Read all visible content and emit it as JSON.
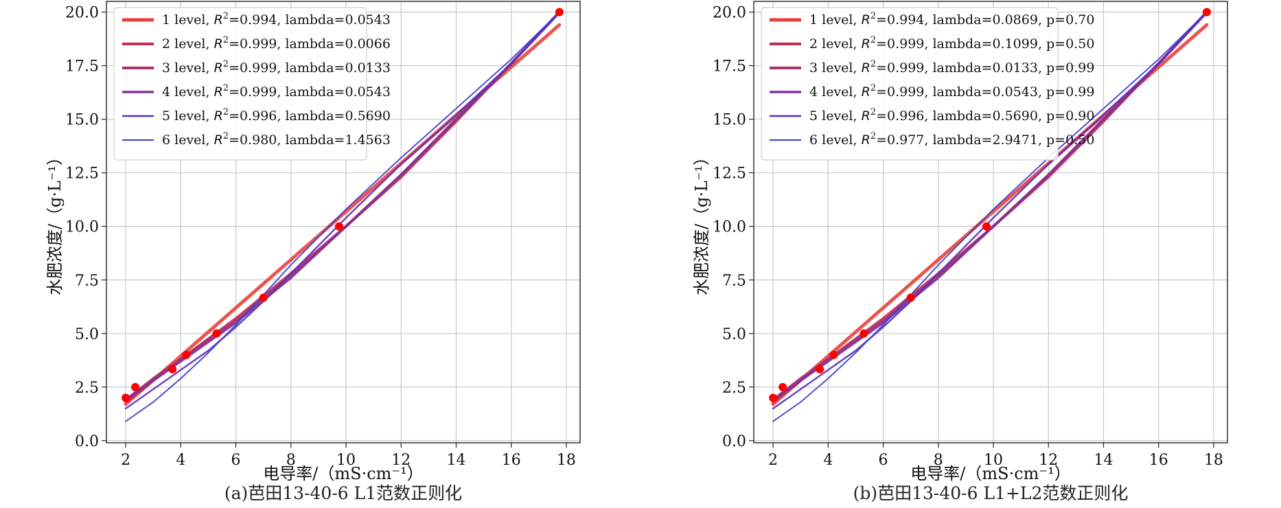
{
  "chart_data": [
    {
      "type": "line",
      "caption": "(a)芭田13-40-6 L1范数正则化",
      "xlabel": "电导率/（mS·cm⁻¹）",
      "ylabel": "水肥浓度/（g·L⁻¹）",
      "xlim": [
        1.3,
        18.5
      ],
      "ylim": [
        -0.1,
        20.5
      ],
      "xticks": [
        2,
        4,
        6,
        8,
        10,
        12,
        14,
        16,
        18
      ],
      "yticks": [
        0.0,
        2.5,
        5.0,
        7.5,
        10.0,
        12.5,
        15.0,
        17.5,
        20.0
      ],
      "tick_labels_x": [
        "2",
        "4",
        "6",
        "8",
        "10",
        "12",
        "14",
        "16",
        "18"
      ],
      "tick_labels_y": [
        "0.0",
        "2.5",
        "5.0",
        "7.5",
        "10.0",
        "12.5",
        "15.0",
        "17.5",
        "20.0"
      ],
      "grid": true,
      "legend_position": "top-left",
      "points": {
        "color": "#ff0000",
        "x": [
          2.0,
          2.35,
          3.7,
          4.2,
          5.3,
          7.0,
          9.75,
          17.75
        ],
        "y": [
          2.0,
          2.5,
          3.33,
          4.0,
          5.0,
          6.67,
          10.0,
          20.0
        ]
      },
      "series": [
        {
          "label_prefix": "1 level, ",
          "r2_symbol": "R",
          "r2_exp": "2",
          "label_suffix": "=0.994, lambda=0.0543",
          "color": "#e8413d",
          "width": 5,
          "x": [
            2.0,
            17.75
          ],
          "y": [
            1.7,
            19.4
          ]
        },
        {
          "label_prefix": "2 level, ",
          "r2_symbol": "R",
          "r2_exp": "2",
          "label_suffix": "=0.999, lambda=0.0066",
          "color": "#c42a52",
          "width": 4,
          "x": [
            2.0,
            3.0,
            4.0,
            6.0,
            8.0,
            10.0,
            12.0,
            14.0,
            16.0,
            17.75
          ],
          "y": [
            1.8,
            2.8,
            3.8,
            5.7,
            7.8,
            10.0,
            12.3,
            14.9,
            17.6,
            20.0
          ]
        },
        {
          "label_prefix": "3 level, ",
          "r2_symbol": "R",
          "r2_exp": "2",
          "label_suffix": "=0.999, lambda=0.0133",
          "color": "#a8316f",
          "width": 4,
          "x": [
            2.0,
            3.0,
            4.0,
            6.0,
            8.0,
            10.0,
            12.0,
            14.0,
            16.0,
            17.75
          ],
          "y": [
            1.9,
            2.9,
            3.8,
            5.6,
            7.7,
            10.0,
            12.4,
            15.0,
            17.6,
            20.0
          ]
        },
        {
          "label_prefix": "4 level, ",
          "r2_symbol": "R",
          "r2_exp": "2",
          "label_suffix": "=0.999, lambda=0.0543",
          "color": "#7e3196",
          "width": 3.5,
          "x": [
            2.0,
            3.0,
            4.0,
            6.0,
            8.0,
            10.0,
            12.0,
            14.0,
            16.0,
            17.75
          ],
          "y": [
            1.9,
            2.8,
            3.7,
            5.5,
            7.6,
            10.0,
            12.4,
            15.0,
            17.6,
            20.0
          ]
        },
        {
          "label_prefix": "5 level, ",
          "r2_symbol": "R",
          "r2_exp": "2",
          "label_suffix": "=0.996, lambda=0.5690",
          "color": "#5a2fc0",
          "width": 2.5,
          "x": [
            2.0,
            3.0,
            4.0,
            5.0,
            6.0,
            7.0,
            8.0,
            10.0,
            12.0,
            14.0,
            16.0,
            17.75
          ],
          "y": [
            1.5,
            2.4,
            3.3,
            4.2,
            5.3,
            6.5,
            7.8,
            10.4,
            12.9,
            15.2,
            17.6,
            20.0
          ]
        },
        {
          "label_prefix": "6 level, ",
          "r2_symbol": "R",
          "r2_exp": "2",
          "label_suffix": "=0.980, lambda=1.4563",
          "color": "#3b3bcc",
          "width": 2,
          "x": [
            2.0,
            3.0,
            4.0,
            5.0,
            6.0,
            7.0,
            8.0,
            10.0,
            12.0,
            14.0,
            16.0,
            17.75
          ],
          "y": [
            0.9,
            1.8,
            2.9,
            4.1,
            5.4,
            6.8,
            8.2,
            10.8,
            13.2,
            15.5,
            17.8,
            20.0
          ]
        }
      ]
    },
    {
      "type": "line",
      "caption": "(b)芭田13-40-6 L1+L2范数正则化",
      "xlabel": "电导率/（mS·cm⁻¹）",
      "ylabel": "水肥浓度/（g·L⁻¹）",
      "xlim": [
        1.3,
        18.5
      ],
      "ylim": [
        -0.1,
        20.5
      ],
      "xticks": [
        2,
        4,
        6,
        8,
        10,
        12,
        14,
        16,
        18
      ],
      "yticks": [
        0.0,
        2.5,
        5.0,
        7.5,
        10.0,
        12.5,
        15.0,
        17.5,
        20.0
      ],
      "tick_labels_x": [
        "2",
        "4",
        "6",
        "8",
        "10",
        "12",
        "14",
        "16",
        "18"
      ],
      "tick_labels_y": [
        "0.0",
        "2.5",
        "5.0",
        "7.5",
        "10.0",
        "12.5",
        "15.0",
        "17.5",
        "20.0"
      ],
      "grid": true,
      "legend_position": "top-left",
      "points": {
        "color": "#ff0000",
        "x": [
          2.0,
          2.35,
          3.7,
          4.2,
          5.3,
          7.0,
          9.75,
          17.75
        ],
        "y": [
          2.0,
          2.5,
          3.33,
          4.0,
          5.0,
          6.67,
          10.0,
          20.0
        ]
      },
      "series": [
        {
          "label_prefix": "1 level, ",
          "r2_symbol": "R",
          "r2_exp": "2",
          "label_suffix": "=0.994, lambda=0.0869, p=0.70",
          "color": "#e8413d",
          "width": 5,
          "x": [
            2.0,
            17.75
          ],
          "y": [
            1.7,
            19.4
          ]
        },
        {
          "label_prefix": "2 level, ",
          "r2_symbol": "R",
          "r2_exp": "2",
          "label_suffix": "=0.999, lambda=0.1099, p=0.50",
          "color": "#c42a52",
          "width": 4,
          "x": [
            2.0,
            3.0,
            4.0,
            6.0,
            8.0,
            10.0,
            12.0,
            14.0,
            16.0,
            17.75
          ],
          "y": [
            1.8,
            2.8,
            3.8,
            5.7,
            7.8,
            10.0,
            12.3,
            14.9,
            17.6,
            20.0
          ]
        },
        {
          "label_prefix": "3 level, ",
          "r2_symbol": "R",
          "r2_exp": "2",
          "label_suffix": "=0.999, lambda=0.0133, p=0.99",
          "color": "#a8316f",
          "width": 4,
          "x": [
            2.0,
            3.0,
            4.0,
            6.0,
            8.0,
            10.0,
            12.0,
            14.0,
            16.0,
            17.75
          ],
          "y": [
            1.9,
            2.9,
            3.8,
            5.6,
            7.7,
            10.0,
            12.4,
            15.0,
            17.6,
            20.0
          ]
        },
        {
          "label_prefix": "4 level, ",
          "r2_symbol": "R",
          "r2_exp": "2",
          "label_suffix": "=0.999, lambda=0.0543, p=0.99",
          "color": "#7e3196",
          "width": 3.5,
          "x": [
            2.0,
            3.0,
            4.0,
            6.0,
            8.0,
            10.0,
            12.0,
            14.0,
            16.0,
            17.75
          ],
          "y": [
            1.9,
            2.8,
            3.7,
            5.5,
            7.6,
            10.0,
            12.4,
            15.0,
            17.6,
            20.0
          ]
        },
        {
          "label_prefix": "5 level, ",
          "r2_symbol": "R",
          "r2_exp": "2",
          "label_suffix": "=0.996, lambda=0.5690, p=0.90",
          "color": "#5a2fc0",
          "width": 2.5,
          "x": [
            2.0,
            3.0,
            4.0,
            5.0,
            6.0,
            7.0,
            8.0,
            10.0,
            12.0,
            14.0,
            16.0,
            17.75
          ],
          "y": [
            1.5,
            2.4,
            3.3,
            4.2,
            5.3,
            6.5,
            7.8,
            10.4,
            12.9,
            15.2,
            17.6,
            20.0
          ]
        },
        {
          "label_prefix": "6 level, ",
          "r2_symbol": "R",
          "r2_exp": "2",
          "label_suffix": "=0.977, lambda=2.9471, p=0.50",
          "color": "#3b3bcc",
          "width": 2,
          "x": [
            2.0,
            3.0,
            4.0,
            5.0,
            6.0,
            7.0,
            8.0,
            10.0,
            12.0,
            14.0,
            16.0,
            17.75
          ],
          "y": [
            0.9,
            1.8,
            2.9,
            4.1,
            5.4,
            6.8,
            8.2,
            10.8,
            13.2,
            15.5,
            17.8,
            20.0
          ]
        }
      ]
    }
  ]
}
